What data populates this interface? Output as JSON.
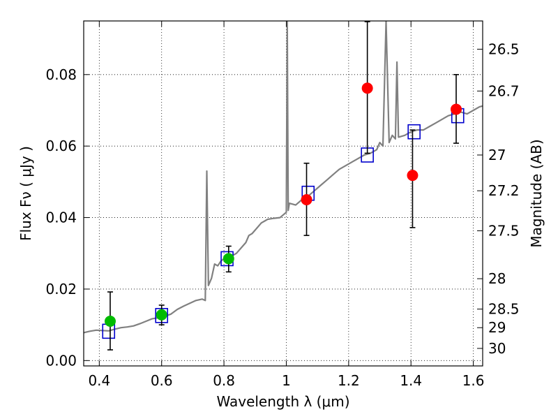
{
  "chart_data": {
    "type": "scatter",
    "xlabel": "Wavelength  λ (μm)",
    "ylabel": "Flux  Fν  ( μJy )",
    "y2label": "Magnitude (AB)",
    "xlim": [
      0.35,
      1.63
    ],
    "ylim": [
      -0.0015,
      0.095
    ],
    "grid": true,
    "x_ticks": [
      0.4,
      0.6,
      0.8,
      1.0,
      1.2,
      1.4,
      1.6
    ],
    "x_tick_labels": [
      "0.4",
      "0.6",
      "0.8",
      "1",
      "1.2",
      "1.4",
      "1.6"
    ],
    "y_ticks": [
      0.0,
      0.02,
      0.04,
      0.06,
      0.08
    ],
    "y_tick_labels": [
      "0.00",
      "0.02",
      "0.04",
      "0.06",
      "0.08"
    ],
    "magnitude_ticks": [
      {
        "label": "26.5",
        "flux": 0.0871
      },
      {
        "label": "26.7",
        "flux": 0.0754
      },
      {
        "label": "27",
        "flux": 0.0575
      },
      {
        "label": "27.2",
        "flux": 0.0475
      },
      {
        "label": "27.5",
        "flux": 0.0363
      },
      {
        "label": "28",
        "flux": 0.0229
      },
      {
        "label": "28.5",
        "flux": 0.0144
      },
      {
        "label": "29",
        "flux": 0.0092
      },
      {
        "label": "30",
        "flux": 0.0034
      }
    ],
    "series": [
      {
        "type": "line",
        "color": "#808080",
        "points": [
          [
            0.35,
            0.0078
          ],
          [
            0.37,
            0.0082
          ],
          [
            0.39,
            0.0085
          ],
          [
            0.41,
            0.0084
          ],
          [
            0.43,
            0.0083
          ],
          [
            0.45,
            0.0088
          ],
          [
            0.47,
            0.0092
          ],
          [
            0.49,
            0.0094
          ],
          [
            0.51,
            0.0097
          ],
          [
            0.53,
            0.0103
          ],
          [
            0.55,
            0.011
          ],
          [
            0.57,
            0.0117
          ],
          [
            0.59,
            0.012
          ],
          [
            0.61,
            0.0124
          ],
          [
            0.63,
            0.013
          ],
          [
            0.65,
            0.0143
          ],
          [
            0.67,
            0.0152
          ],
          [
            0.69,
            0.016
          ],
          [
            0.71,
            0.0168
          ],
          [
            0.73,
            0.0172
          ],
          [
            0.74,
            0.0168
          ],
          [
            0.745,
            0.053
          ],
          [
            0.75,
            0.021
          ],
          [
            0.76,
            0.023
          ],
          [
            0.77,
            0.027
          ],
          [
            0.78,
            0.0265
          ],
          [
            0.79,
            0.0278
          ],
          [
            0.8,
            0.0285
          ],
          [
            0.82,
            0.029
          ],
          [
            0.84,
            0.03
          ],
          [
            0.86,
            0.032
          ],
          [
            0.87,
            0.033
          ],
          [
            0.88,
            0.035
          ],
          [
            0.89,
            0.0355
          ],
          [
            0.9,
            0.0365
          ],
          [
            0.92,
            0.0385
          ],
          [
            0.94,
            0.0395
          ],
          [
            0.96,
            0.0398
          ],
          [
            0.98,
            0.04
          ],
          [
            1.0,
            0.0415
          ],
          [
            1.003,
            0.095
          ],
          [
            1.006,
            0.042
          ],
          [
            1.01,
            0.044
          ],
          [
            1.03,
            0.0435
          ],
          [
            1.05,
            0.045
          ],
          [
            1.07,
            0.046
          ],
          [
            1.09,
            0.0475
          ],
          [
            1.11,
            0.049
          ],
          [
            1.13,
            0.0505
          ],
          [
            1.15,
            0.052
          ],
          [
            1.17,
            0.0535
          ],
          [
            1.19,
            0.0545
          ],
          [
            1.21,
            0.0555
          ],
          [
            1.23,
            0.0565
          ],
          [
            1.25,
            0.0575
          ],
          [
            1.27,
            0.058
          ],
          [
            1.29,
            0.059
          ],
          [
            1.3,
            0.061
          ],
          [
            1.31,
            0.06
          ],
          [
            1.32,
            0.095
          ],
          [
            1.33,
            0.061
          ],
          [
            1.34,
            0.063
          ],
          [
            1.35,
            0.062
          ],
          [
            1.355,
            0.0835
          ],
          [
            1.36,
            0.0625
          ],
          [
            1.38,
            0.063
          ],
          [
            1.4,
            0.064
          ],
          [
            1.42,
            0.0645
          ],
          [
            1.44,
            0.0645
          ],
          [
            1.46,
            0.0655
          ],
          [
            1.48,
            0.0665
          ],
          [
            1.5,
            0.0675
          ],
          [
            1.52,
            0.0685
          ],
          [
            1.54,
            0.069
          ],
          [
            1.56,
            0.0695
          ],
          [
            1.58,
            0.069
          ],
          [
            1.6,
            0.07
          ],
          [
            1.62,
            0.071
          ],
          [
            1.63,
            0.0712
          ]
        ]
      },
      {
        "type": "squares",
        "color": "#0000cc",
        "points": [
          [
            0.43,
            0.0082
          ],
          [
            0.6,
            0.0126
          ],
          [
            0.81,
            0.0285
          ],
          [
            1.07,
            0.0468
          ],
          [
            1.26,
            0.0575
          ],
          [
            1.41,
            0.064
          ],
          [
            1.55,
            0.0685
          ]
        ]
      },
      {
        "type": "points_with_errors",
        "color_green": "#00bb00",
        "color_red": "#ff0000",
        "points": [
          {
            "x": 0.435,
            "y": 0.011,
            "yerr_low": 0.003,
            "yerr_high": 0.0192,
            "color": "green"
          },
          {
            "x": 0.6,
            "y": 0.0128,
            "yerr_low": 0.01,
            "yerr_high": 0.0155,
            "color": "green"
          },
          {
            "x": 0.815,
            "y": 0.0285,
            "yerr_low": 0.0248,
            "yerr_high": 0.032,
            "color": "green"
          },
          {
            "x": 1.065,
            "y": 0.045,
            "yerr_low": 0.035,
            "yerr_high": 0.0552,
            "color": "red"
          },
          {
            "x": 1.26,
            "y": 0.0762,
            "yerr_low": 0.058,
            "yerr_high": 0.0948,
            "color": "red"
          },
          {
            "x": 1.405,
            "y": 0.0518,
            "yerr_low": 0.0372,
            "yerr_high": 0.0645,
            "color": "red"
          },
          {
            "x": 1.545,
            "y": 0.0703,
            "yerr_low": 0.0608,
            "yerr_high": 0.08,
            "color": "red"
          }
        ]
      }
    ]
  }
}
